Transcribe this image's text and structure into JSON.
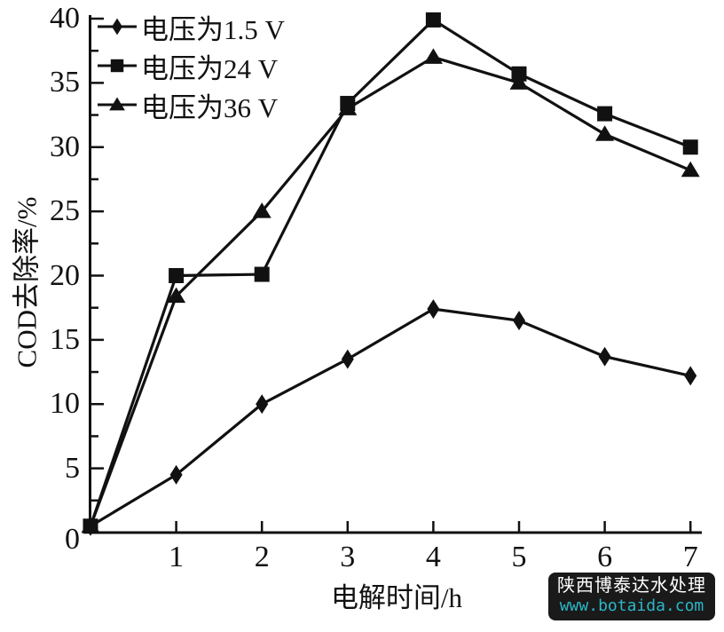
{
  "figure": {
    "background": "#ffffff"
  },
  "chart_data": {
    "type": "line",
    "title": "",
    "xlabel": "电解时间/h",
    "ylabel": "COD去除率/%",
    "xlim": [
      0,
      7.15
    ],
    "ylim": [
      0,
      40
    ],
    "xticks": [
      1,
      2,
      3,
      4,
      5,
      6,
      7
    ],
    "yticks": [
      0,
      5,
      10,
      15,
      20,
      25,
      30,
      35,
      40
    ],
    "ytick_minor_step": 2.5,
    "grid": false,
    "legend_position": "top-left",
    "line_color": "#111111",
    "x": [
      0,
      1,
      2,
      3,
      4,
      5,
      6,
      7
    ],
    "series": [
      {
        "name": "电压为1.5 V",
        "marker": "diamond",
        "values": [
          0.5,
          4.5,
          10.0,
          13.5,
          17.4,
          16.5,
          13.7,
          12.2
        ]
      },
      {
        "name": "电压为24 V",
        "marker": "square",
        "values": [
          0.5,
          20.0,
          20.1,
          33.4,
          39.9,
          35.7,
          32.6,
          30.0
        ]
      },
      {
        "name": "电压为36 V",
        "marker": "triangle",
        "values": [
          0.5,
          18.4,
          25.0,
          33.0,
          37.0,
          35.0,
          31.0,
          28.2
        ]
      }
    ]
  },
  "watermark": {
    "line1": "陕西博泰达水处理",
    "line2": "www.botaida.com",
    "background": "#1a1a1a",
    "line1_color": "#ffffff",
    "line2_color": "#2ab7c9"
  }
}
